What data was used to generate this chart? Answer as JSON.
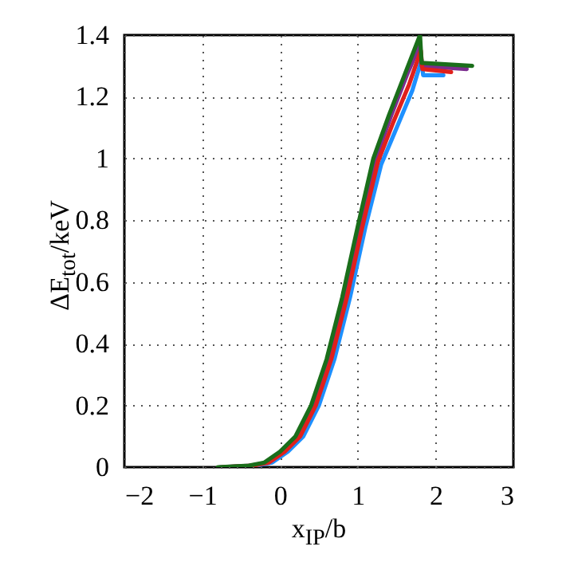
{
  "chart_data": {
    "type": "line",
    "xlabel": "x$_{IP}$/b",
    "ylabel": "ΔE$_{tot}$/keV",
    "xlim": [
      -2,
      3
    ],
    "ylim": [
      0,
      1.4
    ],
    "xticks": [
      -2,
      -1,
      0,
      1,
      2,
      3
    ],
    "yticks": [
      0,
      0.2,
      0.4,
      0.6,
      0.8,
      1,
      1.2,
      1.4
    ],
    "grid": true,
    "marker": "none",
    "line_style": "solid",
    "series": [
      {
        "color": "#1e90ff",
        "x": [
          -0.7,
          -0.3,
          -0.1,
          0.1,
          0.3,
          0.5,
          0.7,
          0.9,
          1.1,
          1.3,
          1.5,
          1.7,
          1.82,
          1.84,
          2.1
        ],
        "values": [
          0,
          0.005,
          0.015,
          0.05,
          0.1,
          0.2,
          0.35,
          0.55,
          0.78,
          0.98,
          1.1,
          1.22,
          1.32,
          1.27,
          1.27
        ]
      },
      {
        "color": "#7b2d8e",
        "x": [
          -0.77,
          -0.37,
          -0.17,
          0.03,
          0.23,
          0.43,
          0.63,
          0.83,
          1.03,
          1.23,
          1.43,
          1.63,
          1.8,
          1.82,
          2.4
        ],
        "values": [
          0,
          0.005,
          0.015,
          0.05,
          0.1,
          0.2,
          0.35,
          0.55,
          0.78,
          1.0,
          1.14,
          1.27,
          1.37,
          1.3,
          1.29
        ]
      },
      {
        "color": "#e0201b",
        "x": [
          -0.74,
          -0.34,
          -0.14,
          0.06,
          0.26,
          0.46,
          0.66,
          0.86,
          1.06,
          1.26,
          1.46,
          1.66,
          1.81,
          1.83,
          2.2
        ],
        "values": [
          0,
          0.005,
          0.015,
          0.05,
          0.1,
          0.2,
          0.35,
          0.55,
          0.78,
          0.99,
          1.12,
          1.24,
          1.35,
          1.29,
          1.28
        ]
      },
      {
        "color": "#1a6e1a",
        "x": [
          -0.8,
          -0.4,
          -0.2,
          0,
          0.2,
          0.4,
          0.6,
          0.8,
          1.0,
          1.2,
          1.4,
          1.6,
          1.8,
          1.82,
          2.47
        ],
        "values": [
          0,
          0.005,
          0.015,
          0.05,
          0.1,
          0.2,
          0.35,
          0.55,
          0.78,
          1.0,
          1.14,
          1.27,
          1.4,
          1.31,
          1.3
        ]
      }
    ]
  }
}
